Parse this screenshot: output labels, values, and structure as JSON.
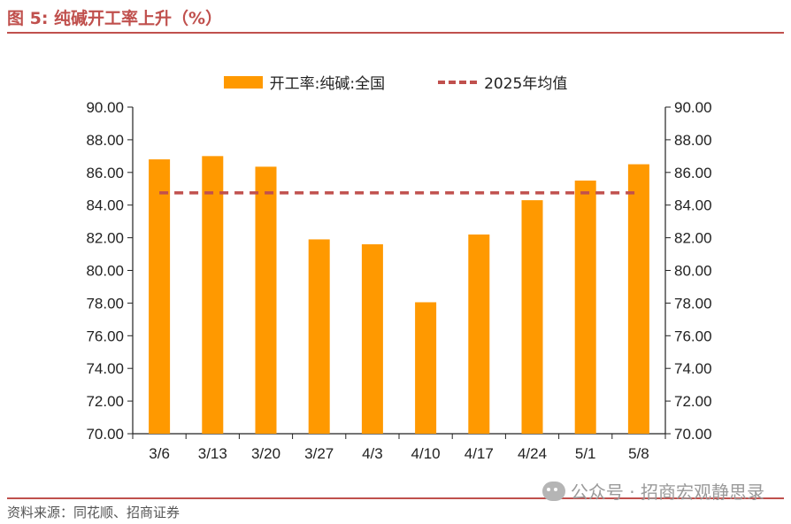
{
  "header": {
    "title": "图 5:  纯碱开工率上升（%）"
  },
  "footer": {
    "source": "资料来源：同花顺、招商证券",
    "watermark": "公众号 · 招商宏观静思录"
  },
  "legend": {
    "bar_label": "开工率:纯碱:全国",
    "line_label": "2025年均值"
  },
  "colors": {
    "bar": "#ff9900",
    "avg_line": "#c0504d",
    "accent": "#c0504d",
    "axis": "#222222"
  },
  "chart_data": {
    "type": "bar",
    "categories": [
      "3/6",
      "3/13",
      "3/20",
      "3/27",
      "4/3",
      "4/10",
      "4/17",
      "4/24",
      "5/1",
      "5/8"
    ],
    "series": [
      {
        "name": "开工率:纯碱:全国",
        "values": [
          86.8,
          87.0,
          86.35,
          81.9,
          81.6,
          78.05,
          82.2,
          84.3,
          85.5,
          86.5
        ]
      },
      {
        "name": "2025年均值",
        "type": "line",
        "style": "dashed",
        "values": [
          84.75,
          84.75,
          84.75,
          84.75,
          84.75,
          84.75,
          84.75,
          84.75,
          84.75,
          84.75
        ]
      }
    ],
    "ylim": [
      70,
      90
    ],
    "yticks": [
      "70.00",
      "72.00",
      "74.00",
      "76.00",
      "78.00",
      "80.00",
      "82.00",
      "84.00",
      "86.00",
      "88.00",
      "90.00"
    ],
    "y2ticks": [
      "70.00",
      "72.00",
      "74.00",
      "76.00",
      "78.00",
      "80.00",
      "82.00",
      "84.00",
      "86.00",
      "88.00",
      "90.00"
    ],
    "grid": false,
    "legend_position": "top"
  }
}
